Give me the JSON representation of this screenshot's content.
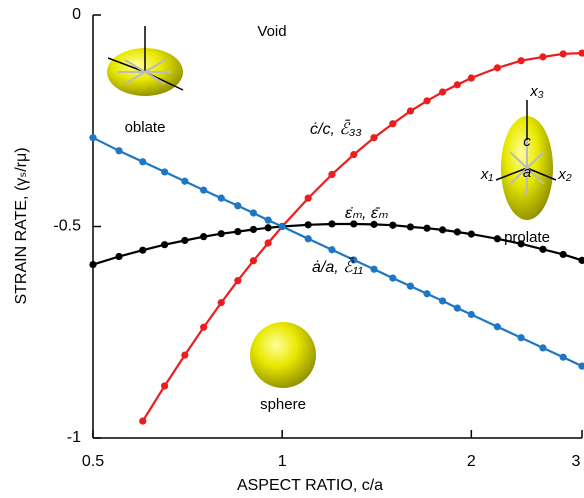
{
  "chart_data": {
    "type": "line",
    "x_label": "ASPECT RATIO, c/a",
    "y_label": "STRAIN RATE, (γₛ/rμ)",
    "xlim": [
      0.5,
      3
    ],
    "ylim": [
      -1,
      0
    ],
    "xticks": [
      0.5,
      1,
      2,
      3
    ],
    "yticks": [
      0,
      -0.5,
      -1
    ],
    "log_x": true,
    "x": [
      0.5,
      0.55,
      0.6,
      0.65,
      0.7,
      0.75,
      0.8,
      0.85,
      0.9,
      0.95,
      1,
      1.1,
      1.2,
      1.3,
      1.4,
      1.5,
      1.6,
      1.7,
      1.8,
      1.9,
      2,
      2.2,
      2.4,
      2.6,
      2.8,
      3
    ],
    "series": [
      {
        "name": "ċ/c, ℰ̄₃₃",
        "color": "#ee1c1c",
        "values": [
          null,
          null,
          -0.96,
          -0.877,
          -0.804,
          -0.738,
          -0.68,
          -0.628,
          -0.581,
          -0.539,
          -0.5,
          -0.433,
          -0.377,
          -0.33,
          -0.29,
          -0.257,
          -0.227,
          -0.203,
          -0.182,
          -0.165,
          -0.149,
          -0.125,
          -0.108,
          -0.099,
          -0.092,
          -0.09
        ]
      },
      {
        "name": "ε̇ₘ, ε̄ₘ",
        "color": "#000000",
        "values": [
          -0.59,
          -0.571,
          -0.556,
          -0.543,
          -0.533,
          -0.524,
          -0.517,
          -0.512,
          -0.507,
          -0.503,
          -0.5,
          -0.496,
          -0.494,
          -0.494,
          -0.495,
          -0.497,
          -0.501,
          -0.504,
          -0.508,
          -0.513,
          -0.518,
          -0.529,
          -0.541,
          -0.554,
          -0.566,
          -0.58
        ]
      },
      {
        "name": "ȧ/a, ℰ̄₁₁",
        "color": "#1f77c4",
        "values": [
          -0.29,
          -0.321,
          -0.347,
          -0.371,
          -0.393,
          -0.414,
          -0.433,
          -0.451,
          -0.468,
          -0.485,
          -0.5,
          -0.529,
          -0.555,
          -0.579,
          -0.601,
          -0.622,
          -0.641,
          -0.659,
          -0.676,
          -0.693,
          -0.708,
          -0.737,
          -0.763,
          -0.787,
          -0.809,
          -0.83
        ]
      }
    ],
    "annotations": [
      "Void",
      "oblate",
      "prolate",
      "sphere",
      "x₁",
      "x₂",
      "x₃",
      "a",
      "c"
    ]
  }
}
